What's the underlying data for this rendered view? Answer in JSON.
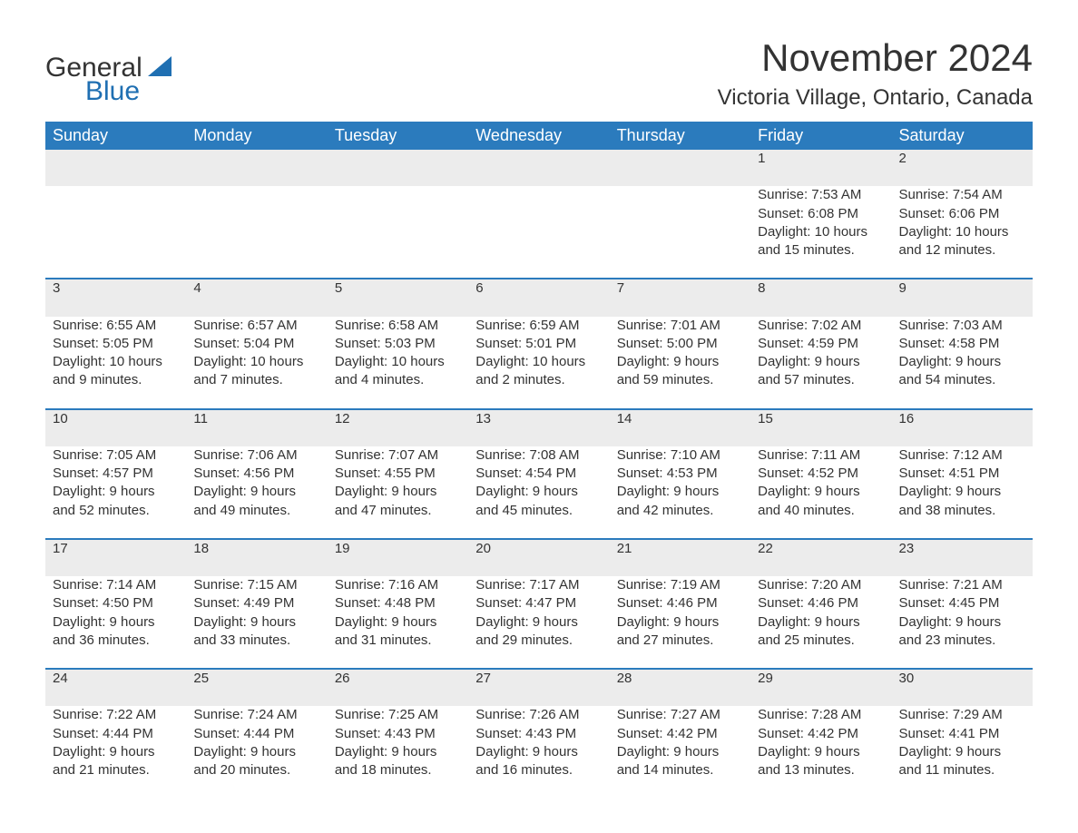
{
  "logo": {
    "word1": "General",
    "word2": "Blue",
    "accent_color": "#1f6fb2"
  },
  "title": "November 2024",
  "location": "Victoria Village, Ontario, Canada",
  "colors": {
    "header_bg": "#2b7bbd",
    "header_text": "#ffffff",
    "row_divider": "#2b7bbd",
    "daynum_bg": "#ececec",
    "text": "#333333",
    "page_bg": "#ffffff"
  },
  "fonts": {
    "title_size_pt": 42,
    "location_size_pt": 24,
    "dayhead_size_pt": 18,
    "body_size_pt": 15
  },
  "day_headers": [
    "Sunday",
    "Monday",
    "Tuesday",
    "Wednesday",
    "Thursday",
    "Friday",
    "Saturday"
  ],
  "weeks": [
    [
      null,
      null,
      null,
      null,
      null,
      {
        "n": "1",
        "sr": "7:53 AM",
        "ss": "6:08 PM",
        "dl": "10 hours and 15 minutes."
      },
      {
        "n": "2",
        "sr": "7:54 AM",
        "ss": "6:06 PM",
        "dl": "10 hours and 12 minutes."
      }
    ],
    [
      {
        "n": "3",
        "sr": "6:55 AM",
        "ss": "5:05 PM",
        "dl": "10 hours and 9 minutes."
      },
      {
        "n": "4",
        "sr": "6:57 AM",
        "ss": "5:04 PM",
        "dl": "10 hours and 7 minutes."
      },
      {
        "n": "5",
        "sr": "6:58 AM",
        "ss": "5:03 PM",
        "dl": "10 hours and 4 minutes."
      },
      {
        "n": "6",
        "sr": "6:59 AM",
        "ss": "5:01 PM",
        "dl": "10 hours and 2 minutes."
      },
      {
        "n": "7",
        "sr": "7:01 AM",
        "ss": "5:00 PM",
        "dl": "9 hours and 59 minutes."
      },
      {
        "n": "8",
        "sr": "7:02 AM",
        "ss": "4:59 PM",
        "dl": "9 hours and 57 minutes."
      },
      {
        "n": "9",
        "sr": "7:03 AM",
        "ss": "4:58 PM",
        "dl": "9 hours and 54 minutes."
      }
    ],
    [
      {
        "n": "10",
        "sr": "7:05 AM",
        "ss": "4:57 PM",
        "dl": "9 hours and 52 minutes."
      },
      {
        "n": "11",
        "sr": "7:06 AM",
        "ss": "4:56 PM",
        "dl": "9 hours and 49 minutes."
      },
      {
        "n": "12",
        "sr": "7:07 AM",
        "ss": "4:55 PM",
        "dl": "9 hours and 47 minutes."
      },
      {
        "n": "13",
        "sr": "7:08 AM",
        "ss": "4:54 PM",
        "dl": "9 hours and 45 minutes."
      },
      {
        "n": "14",
        "sr": "7:10 AM",
        "ss": "4:53 PM",
        "dl": "9 hours and 42 minutes."
      },
      {
        "n": "15",
        "sr": "7:11 AM",
        "ss": "4:52 PM",
        "dl": "9 hours and 40 minutes."
      },
      {
        "n": "16",
        "sr": "7:12 AM",
        "ss": "4:51 PM",
        "dl": "9 hours and 38 minutes."
      }
    ],
    [
      {
        "n": "17",
        "sr": "7:14 AM",
        "ss": "4:50 PM",
        "dl": "9 hours and 36 minutes."
      },
      {
        "n": "18",
        "sr": "7:15 AM",
        "ss": "4:49 PM",
        "dl": "9 hours and 33 minutes."
      },
      {
        "n": "19",
        "sr": "7:16 AM",
        "ss": "4:48 PM",
        "dl": "9 hours and 31 minutes."
      },
      {
        "n": "20",
        "sr": "7:17 AM",
        "ss": "4:47 PM",
        "dl": "9 hours and 29 minutes."
      },
      {
        "n": "21",
        "sr": "7:19 AM",
        "ss": "4:46 PM",
        "dl": "9 hours and 27 minutes."
      },
      {
        "n": "22",
        "sr": "7:20 AM",
        "ss": "4:46 PM",
        "dl": "9 hours and 25 minutes."
      },
      {
        "n": "23",
        "sr": "7:21 AM",
        "ss": "4:45 PM",
        "dl": "9 hours and 23 minutes."
      }
    ],
    [
      {
        "n": "24",
        "sr": "7:22 AM",
        "ss": "4:44 PM",
        "dl": "9 hours and 21 minutes."
      },
      {
        "n": "25",
        "sr": "7:24 AM",
        "ss": "4:44 PM",
        "dl": "9 hours and 20 minutes."
      },
      {
        "n": "26",
        "sr": "7:25 AM",
        "ss": "4:43 PM",
        "dl": "9 hours and 18 minutes."
      },
      {
        "n": "27",
        "sr": "7:26 AM",
        "ss": "4:43 PM",
        "dl": "9 hours and 16 minutes."
      },
      {
        "n": "28",
        "sr": "7:27 AM",
        "ss": "4:42 PM",
        "dl": "9 hours and 14 minutes."
      },
      {
        "n": "29",
        "sr": "7:28 AM",
        "ss": "4:42 PM",
        "dl": "9 hours and 13 minutes."
      },
      {
        "n": "30",
        "sr": "7:29 AM",
        "ss": "4:41 PM",
        "dl": "9 hours and 11 minutes."
      }
    ]
  ],
  "labels": {
    "sunrise": "Sunrise: ",
    "sunset": "Sunset: ",
    "daylight": "Daylight: "
  }
}
